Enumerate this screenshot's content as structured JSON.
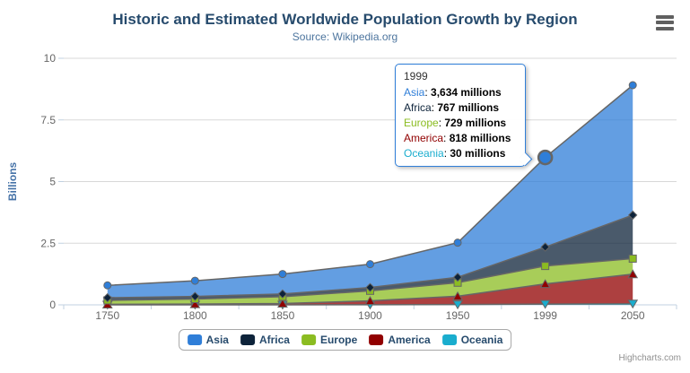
{
  "header": {
    "title": "Historic and Estimated Worldwide Population Growth by Region",
    "subtitle": "Source: Wikipedia.org"
  },
  "icons": {
    "export_menu": "hamburger-icon"
  },
  "chart_data": {
    "type": "area",
    "stacking": "normal",
    "title": "Historic and Estimated Worldwide Population Growth by Region",
    "subtitle": "Source: Wikipedia.org",
    "categories": [
      "1750",
      "1800",
      "1850",
      "1900",
      "1950",
      "1999",
      "2050"
    ],
    "unit": "millions",
    "xlabel": "",
    "ylabel": "Billions",
    "ylim": [
      0,
      10
    ],
    "yticks": [
      0,
      2.5,
      5,
      7.5,
      10
    ],
    "grid": true,
    "legend_position": "bottom",
    "line_color": "#666666",
    "fill_opacity": 0.75,
    "series": [
      {
        "name": "Asia",
        "color": "#2f7ed8",
        "marker": "circle",
        "values": [
          502,
          635,
          809,
          947,
          1402,
          3634,
          5268
        ]
      },
      {
        "name": "Africa",
        "color": "#0d233a",
        "marker": "diamond",
        "values": [
          106,
          107,
          111,
          133,
          221,
          767,
          1766
        ]
      },
      {
        "name": "Europe",
        "color": "#8bbc21",
        "marker": "square",
        "values": [
          163,
          203,
          276,
          408,
          547,
          729,
          628
        ]
      },
      {
        "name": "America",
        "color": "#910000",
        "marker": "triangle",
        "values": [
          18,
          31,
          54,
          156,
          339,
          818,
          1201
        ]
      },
      {
        "name": "Oceania",
        "color": "#1aadce",
        "marker": "triangle-down",
        "values": [
          2,
          2,
          2,
          6,
          13,
          30,
          46
        ]
      }
    ],
    "hover": {
      "series": "Asia",
      "category": "1999"
    }
  },
  "tooltip": {
    "header": "1999",
    "rows": [
      {
        "label": "Asia",
        "color": "#2f7ed8",
        "value": "3,634 millions"
      },
      {
        "label": "Africa",
        "color": "#0d233a",
        "value": "767 millions"
      },
      {
        "label": "Europe",
        "color": "#8bbc21",
        "value": "729 millions"
      },
      {
        "label": "America",
        "color": "#910000",
        "value": "818 millions"
      },
      {
        "label": "Oceania",
        "color": "#1aadce",
        "value": "30 millions"
      }
    ]
  },
  "credits": "Highcharts.com",
  "colors": {
    "title": "#274b6d",
    "subtitle": "#4d759e",
    "axis_labels": "#666666",
    "axis_title": "#4572A7",
    "gridline": "#D8D8D8",
    "axis_line": "#C0D0E0",
    "legend_text": "#274b6d"
  }
}
